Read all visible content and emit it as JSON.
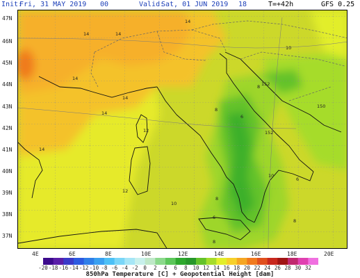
{
  "header": {
    "init_label": "Init:",
    "init_value": "Fri, 31 MAY 2019",
    "init_hour": "00",
    "valid_label": "Valid:",
    "valid_value": "Sat, 01 JUN 2019",
    "valid_hour": "18",
    "lead_time": "T=+42h",
    "model": "GFS 0.25"
  },
  "map": {
    "latitude_labels": [
      "47N",
      "46N",
      "45N",
      "44N",
      "43N",
      "42N",
      "41N",
      "40N",
      "39N",
      "38N",
      "37N"
    ],
    "longitude_labels": [
      "4E",
      "6E",
      "8E",
      "10E",
      "12E",
      "14E",
      "16E",
      "18E",
      "20E"
    ],
    "temperature_labels": [
      "14",
      "14",
      "14",
      "14",
      "14",
      "14",
      "12",
      "14",
      "12",
      "10",
      "10",
      "8",
      "8",
      "10",
      "6",
      "8",
      "8",
      "8",
      "6",
      "6",
      "152",
      "150",
      "152"
    ]
  },
  "colorbar": {
    "ticks": [
      "-20",
      "-18",
      "-16",
      "-14",
      "-12",
      "-10",
      "-8",
      "-6",
      "-4",
      "-2",
      "0",
      "2",
      "4",
      "6",
      "8",
      "10",
      "12",
      "14",
      "16",
      "18",
      "20",
      "22",
      "24",
      "26",
      "28",
      "30",
      "32"
    ],
    "colors": [
      "#3c0a8c",
      "#5a1ea8",
      "#3a3ac8",
      "#2c5ae0",
      "#2f7fe8",
      "#3aa0f0",
      "#4cc0f6",
      "#7ad6f8",
      "#a6e6f6",
      "#c8f0ec",
      "#bfe8c8",
      "#8cd98c",
      "#5cc65a",
      "#2ea82e",
      "#27962a",
      "#64c22a",
      "#a6dc2a",
      "#e2ee2a",
      "#f6d02a",
      "#f5a623",
      "#f07a1e",
      "#e0501e",
      "#c8281e",
      "#a01414",
      "#c0286e",
      "#e040b0",
      "#f070e0"
    ],
    "title": "850hPa Temperature [C] + Geopotential Height [dam]"
  }
}
